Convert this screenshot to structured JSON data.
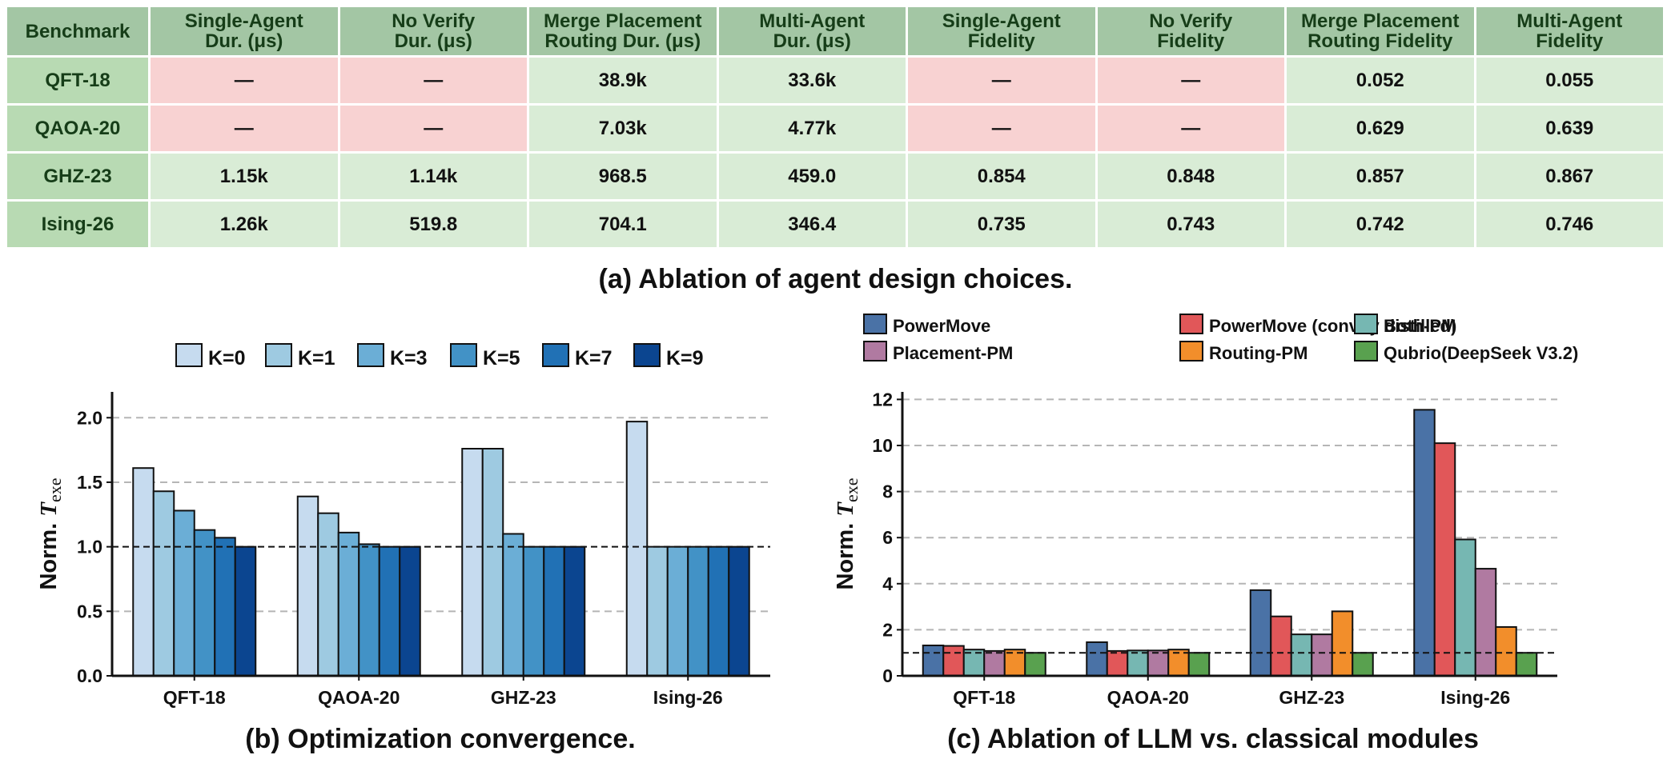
{
  "table": {
    "headers": [
      [
        "Benchmark"
      ],
      [
        "Single-Agent",
        "Dur. (μs)"
      ],
      [
        "No Verify",
        "Dur. (μs)"
      ],
      [
        "Merge Placement",
        "Routing Dur. (μs)"
      ],
      [
        "Multi-Agent",
        "Dur. (μs)"
      ],
      [
        "Single-Agent",
        "Fidelity"
      ],
      [
        "No Verify",
        "Fidelity"
      ],
      [
        "Merge Placement",
        "Routing Fidelity"
      ],
      [
        "Multi-Agent",
        "Fidelity"
      ]
    ],
    "rows": [
      {
        "benchmark": "QFT-18",
        "cells": [
          "—",
          "—",
          "38.9k",
          "33.6k",
          "—",
          "—",
          "0.052",
          "0.055"
        ]
      },
      {
        "benchmark": "QAOA-20",
        "cells": [
          "—",
          "—",
          "7.03k",
          "4.77k",
          "—",
          "—",
          "0.629",
          "0.639"
        ]
      },
      {
        "benchmark": "GHZ-23",
        "cells": [
          "1.15k",
          "1.14k",
          "968.5",
          "459.0",
          "0.854",
          "0.848",
          "0.857",
          "0.867"
        ]
      },
      {
        "benchmark": "Ising-26",
        "cells": [
          "1.26k",
          "519.8",
          "704.1",
          "346.4",
          "0.735",
          "0.743",
          "0.742",
          "0.746"
        ]
      }
    ],
    "colors": {
      "header": "#a3c6a4",
      "row_header": "#b8dab3",
      "ok": "#d9ecd6",
      "missing": "#f8d2d2"
    }
  },
  "captions": {
    "a": "(a) Ablation of agent design choices.",
    "b": "(b) Optimization convergence.",
    "c": "(c) Ablation of LLM vs. classical modules"
  },
  "chart_data": [
    {
      "type": "bar",
      "ylabel": "Norm. T_exe",
      "ylabel_main": "Norm. ",
      "ylabel_var": "T",
      "ylabel_sub": "exe",
      "categories": [
        "QFT-18",
        "QAOA-20",
        "GHZ-23",
        "Ising-26"
      ],
      "series": [
        {
          "name": "K=0",
          "color": "#c6dbef",
          "values": [
            1.61,
            1.39,
            1.76,
            1.97
          ]
        },
        {
          "name": "K=1",
          "color": "#9ecae1",
          "values": [
            1.43,
            1.26,
            1.76,
            1.0
          ]
        },
        {
          "name": "K=3",
          "color": "#6baed6",
          "values": [
            1.28,
            1.11,
            1.1,
            1.0
          ]
        },
        {
          "name": "K=5",
          "color": "#4292c6",
          "values": [
            1.13,
            1.02,
            1.0,
            1.0
          ]
        },
        {
          "name": "K=7",
          "color": "#2171b5",
          "values": [
            1.07,
            1.0,
            1.0,
            1.0
          ]
        },
        {
          "name": "K=9",
          "color": "#0b4590",
          "values": [
            1.0,
            1.0,
            1.0,
            1.0
          ]
        }
      ],
      "ylim": [
        0,
        2.2
      ],
      "yticks": [
        "0.0",
        "0.5",
        "1.0",
        "1.5",
        "2.0"
      ],
      "yticks_values": [
        0,
        0.5,
        1.0,
        1.5,
        2.0
      ],
      "reference_line": 1.0,
      "grid": "horizontal dashed",
      "legend": "top"
    },
    {
      "type": "bar",
      "ylabel": "Norm. T_exe",
      "ylabel_main": "Norm. ",
      "ylabel_var": "T",
      "ylabel_sub": "exe",
      "categories": [
        "QFT-18",
        "QAOA-20",
        "GHZ-23",
        "Ising-26"
      ],
      "series": [
        {
          "name": "PowerMove",
          "color": "#4a72a6",
          "values": [
            1.32,
            1.46,
            3.72,
            11.55
          ]
        },
        {
          "name": "PowerMove (convoy distilled)",
          "color": "#e15759",
          "values": [
            1.3,
            1.08,
            2.58,
            10.1
          ]
        },
        {
          "name": "Both-PM",
          "color": "#76b7b2",
          "values": [
            1.14,
            1.1,
            1.8,
            5.92
          ]
        },
        {
          "name": "Placement-PM",
          "color": "#b07aa1",
          "values": [
            1.08,
            1.1,
            1.8,
            4.65
          ]
        },
        {
          "name": "Routing-PM",
          "color": "#f28e2b",
          "values": [
            1.14,
            1.14,
            2.8,
            2.12
          ]
        },
        {
          "name": "Qubrio(DeepSeek V3.2)",
          "color": "#59a14f",
          "values": [
            1.0,
            1.0,
            1.0,
            1.0
          ]
        }
      ],
      "ylim": [
        0,
        12.5
      ],
      "yticks": [
        "0",
        "2",
        "4",
        "6",
        "8",
        "10",
        "12"
      ],
      "yticks_values": [
        0,
        2,
        4,
        6,
        8,
        10,
        12
      ],
      "reference_line": 1.0,
      "grid": "horizontal dashed",
      "legend": "top"
    }
  ]
}
